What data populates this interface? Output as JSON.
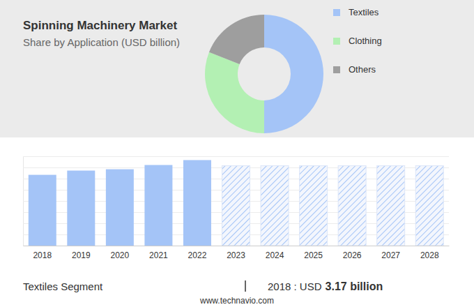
{
  "chart_data": [
    {
      "type": "pie",
      "title": "Spinning Machinery Market",
      "subtitle": "Share by Application (USD billion)",
      "categories": [
        "Textiles",
        "Clothing",
        "Others"
      ],
      "values": [
        50,
        31,
        19
      ],
      "colors": [
        "#a4c4f7",
        "#b3f0b3",
        "#9e9e9e"
      ],
      "legend": "right"
    },
    {
      "type": "bar",
      "categories": [
        "2018",
        "2019",
        "2020",
        "2021",
        "2022",
        "2023",
        "2024",
        "2025",
        "2026",
        "2027",
        "2028"
      ],
      "series": [
        {
          "color": "#a4c4f7",
          "values": [
            6.34,
            6.72,
            6.84,
            7.22,
            7.66,
            null,
            null,
            null,
            null,
            null,
            null
          ]
        },
        {
          "color": "#a4c4f7",
          "line_style": "hatched",
          "values": [
            null,
            null,
            null,
            null,
            null,
            7.16,
            7.16,
            7.16,
            7.16,
            7.16,
            7.16
          ]
        }
      ],
      "ylim": [
        0,
        8
      ],
      "yticks": [
        0,
        1,
        2,
        3,
        4,
        5,
        6,
        7,
        8
      ],
      "grid": true,
      "tick_labels": "x",
      "footer": {
        "segment": "Textiles Segment",
        "prefix": "2018 : USD",
        "value": "3.17 billion",
        "source": "www.technavio.com"
      }
    }
  ]
}
